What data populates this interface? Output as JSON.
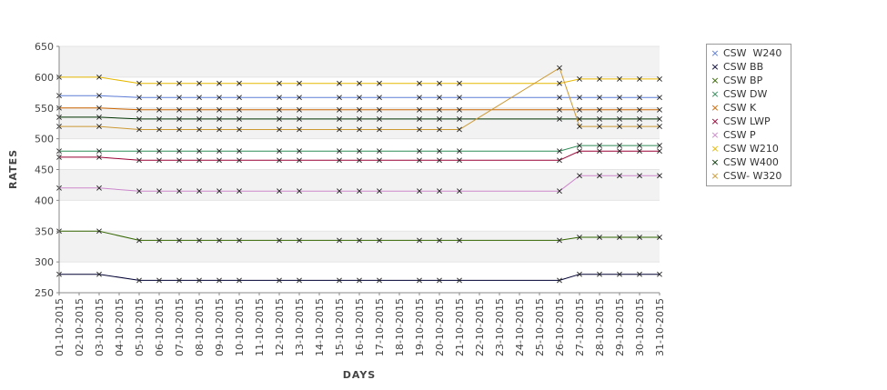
{
  "chart_data": {
    "type": "line",
    "xlabel": "DAYS",
    "ylabel": "RATES",
    "ylim": [
      250,
      650
    ],
    "yticks": [
      250,
      300,
      350,
      400,
      450,
      500,
      550,
      600,
      650
    ],
    "grid": "alternating horizontal bands",
    "legend_position": "right",
    "x": [
      "01-10-2015",
      "02-10-2015",
      "03-10-2015",
      "04-10-2015",
      "05-10-2015",
      "06-10-2015",
      "07-10-2015",
      "08-10-2015",
      "09-10-2015",
      "10-10-2015",
      "11-10-2015",
      "12-10-2015",
      "13-10-2015",
      "14-10-2015",
      "15-10-2015",
      "16-10-2015",
      "17-10-2015",
      "18-10-2015",
      "19-10-2015",
      "20-10-2015",
      "21-10-2015",
      "22-10-2015",
      "23-10-2015",
      "24-10-2015",
      "25-10-2015",
      "26-10-2015",
      "27-10-2015",
      "28-10-2015",
      "29-10-2015",
      "30-10-2015",
      "31-10-2015"
    ],
    "series": [
      {
        "name": "CSW  W240",
        "color": "#5b7bd5",
        "x": [
          "01-10-2015",
          "03-10-2015",
          "05-10-2015",
          "06-10-2015",
          "07-10-2015",
          "08-10-2015",
          "09-10-2015",
          "10-10-2015",
          "12-10-2015",
          "13-10-2015",
          "15-10-2015",
          "16-10-2015",
          "17-10-2015",
          "19-10-2015",
          "20-10-2015",
          "21-10-2015",
          "26-10-2015",
          "27-10-2015",
          "28-10-2015",
          "29-10-2015",
          "30-10-2015",
          "31-10-2015"
        ],
        "values": [
          570,
          570,
          567,
          567,
          567,
          567,
          567,
          567,
          567,
          567,
          567,
          567,
          567,
          567,
          567,
          567,
          567,
          567,
          567,
          567,
          567,
          567
        ]
      },
      {
        "name": "CSW BB",
        "color": "#000033",
        "x": [
          "01-10-2015",
          "03-10-2015",
          "05-10-2015",
          "06-10-2015",
          "07-10-2015",
          "08-10-2015",
          "09-10-2015",
          "10-10-2015",
          "12-10-2015",
          "13-10-2015",
          "15-10-2015",
          "16-10-2015",
          "17-10-2015",
          "19-10-2015",
          "20-10-2015",
          "21-10-2015",
          "26-10-2015",
          "27-10-2015",
          "28-10-2015",
          "29-10-2015",
          "30-10-2015",
          "31-10-2015"
        ],
        "values": [
          280,
          280,
          270,
          270,
          270,
          270,
          270,
          270,
          270,
          270,
          270,
          270,
          270,
          270,
          270,
          270,
          270,
          280,
          280,
          280,
          280,
          280
        ]
      },
      {
        "name": "CSW BP",
        "color": "#336600",
        "x": [
          "01-10-2015",
          "03-10-2015",
          "05-10-2015",
          "06-10-2015",
          "07-10-2015",
          "08-10-2015",
          "09-10-2015",
          "10-10-2015",
          "12-10-2015",
          "13-10-2015",
          "15-10-2015",
          "16-10-2015",
          "17-10-2015",
          "19-10-2015",
          "20-10-2015",
          "21-10-2015",
          "26-10-2015",
          "27-10-2015",
          "28-10-2015",
          "29-10-2015",
          "30-10-2015",
          "31-10-2015"
        ],
        "values": [
          350,
          350,
          335,
          335,
          335,
          335,
          335,
          335,
          335,
          335,
          335,
          335,
          335,
          335,
          335,
          335,
          335,
          340,
          340,
          340,
          340,
          340
        ]
      },
      {
        "name": "CSW DW",
        "color": "#2e8b57",
        "x": [
          "01-10-2015",
          "03-10-2015",
          "05-10-2015",
          "06-10-2015",
          "07-10-2015",
          "08-10-2015",
          "09-10-2015",
          "10-10-2015",
          "12-10-2015",
          "13-10-2015",
          "15-10-2015",
          "16-10-2015",
          "17-10-2015",
          "19-10-2015",
          "20-10-2015",
          "21-10-2015",
          "26-10-2015",
          "27-10-2015",
          "28-10-2015",
          "29-10-2015",
          "30-10-2015",
          "31-10-2015"
        ],
        "values": [
          480,
          480,
          480,
          480,
          480,
          480,
          480,
          480,
          480,
          480,
          480,
          480,
          480,
          480,
          480,
          480,
          480,
          489,
          489,
          489,
          489,
          489
        ]
      },
      {
        "name": "CSW K",
        "color": "#cc6600",
        "x": [
          "01-10-2015",
          "03-10-2015",
          "05-10-2015",
          "06-10-2015",
          "07-10-2015",
          "08-10-2015",
          "09-10-2015",
          "10-10-2015",
          "12-10-2015",
          "13-10-2015",
          "15-10-2015",
          "16-10-2015",
          "17-10-2015",
          "19-10-2015",
          "20-10-2015",
          "21-10-2015",
          "26-10-2015",
          "27-10-2015",
          "28-10-2015",
          "29-10-2015",
          "30-10-2015",
          "31-10-2015"
        ],
        "values": [
          550,
          550,
          547,
          547,
          547,
          547,
          547,
          547,
          547,
          547,
          547,
          547,
          547,
          547,
          547,
          547,
          547,
          547,
          547,
          547,
          547,
          547
        ]
      },
      {
        "name": "CSW LWP",
        "color": "#990033",
        "x": [
          "01-10-2015",
          "03-10-2015",
          "05-10-2015",
          "06-10-2015",
          "07-10-2015",
          "08-10-2015",
          "09-10-2015",
          "10-10-2015",
          "12-10-2015",
          "13-10-2015",
          "15-10-2015",
          "16-10-2015",
          "17-10-2015",
          "19-10-2015",
          "20-10-2015",
          "21-10-2015",
          "26-10-2015",
          "27-10-2015",
          "28-10-2015",
          "29-10-2015",
          "30-10-2015",
          "31-10-2015"
        ],
        "values": [
          470,
          470,
          465,
          465,
          465,
          465,
          465,
          465,
          465,
          465,
          465,
          465,
          465,
          465,
          465,
          465,
          465,
          480,
          480,
          480,
          480,
          480
        ]
      },
      {
        "name": "CSW P",
        "color": "#cc88cc",
        "x": [
          "01-10-2015",
          "03-10-2015",
          "05-10-2015",
          "06-10-2015",
          "07-10-2015",
          "08-10-2015",
          "09-10-2015",
          "10-10-2015",
          "12-10-2015",
          "13-10-2015",
          "15-10-2015",
          "16-10-2015",
          "17-10-2015",
          "19-10-2015",
          "20-10-2015",
          "21-10-2015",
          "26-10-2015",
          "27-10-2015",
          "28-10-2015",
          "29-10-2015",
          "30-10-2015",
          "31-10-2015"
        ],
        "values": [
          420,
          420,
          415,
          415,
          415,
          415,
          415,
          415,
          415,
          415,
          415,
          415,
          415,
          415,
          415,
          415,
          415,
          440,
          440,
          440,
          440,
          440
        ]
      },
      {
        "name": "CSW W210",
        "color": "#e6b800",
        "x": [
          "01-10-2015",
          "03-10-2015",
          "05-10-2015",
          "06-10-2015",
          "07-10-2015",
          "08-10-2015",
          "09-10-2015",
          "10-10-2015",
          "12-10-2015",
          "13-10-2015",
          "15-10-2015",
          "16-10-2015",
          "17-10-2015",
          "19-10-2015",
          "20-10-2015",
          "21-10-2015",
          "26-10-2015",
          "27-10-2015",
          "28-10-2015",
          "29-10-2015",
          "30-10-2015",
          "31-10-2015"
        ],
        "values": [
          600,
          600,
          590,
          590,
          590,
          590,
          590,
          590,
          590,
          590,
          590,
          590,
          590,
          590,
          590,
          590,
          590,
          597,
          597,
          597,
          597,
          597
        ]
      },
      {
        "name": "CSW W400",
        "color": "#003300",
        "x": [
          "01-10-2015",
          "03-10-2015",
          "05-10-2015",
          "06-10-2015",
          "07-10-2015",
          "08-10-2015",
          "09-10-2015",
          "10-10-2015",
          "12-10-2015",
          "13-10-2015",
          "15-10-2015",
          "16-10-2015",
          "17-10-2015",
          "19-10-2015",
          "20-10-2015",
          "21-10-2015",
          "26-10-2015",
          "27-10-2015",
          "28-10-2015",
          "29-10-2015",
          "30-10-2015",
          "31-10-2015"
        ],
        "values": [
          535,
          535,
          532,
          532,
          532,
          532,
          532,
          532,
          532,
          532,
          532,
          532,
          532,
          532,
          532,
          532,
          532,
          532,
          532,
          532,
          532,
          532
        ]
      },
      {
        "name": "CSW- W320",
        "color": "#cc9933",
        "x": [
          "01-10-2015",
          "03-10-2015",
          "05-10-2015",
          "06-10-2015",
          "07-10-2015",
          "08-10-2015",
          "09-10-2015",
          "10-10-2015",
          "12-10-2015",
          "13-10-2015",
          "15-10-2015",
          "16-10-2015",
          "17-10-2015",
          "19-10-2015",
          "20-10-2015",
          "21-10-2015",
          "26-10-2015",
          "27-10-2015",
          "28-10-2015",
          "29-10-2015",
          "30-10-2015",
          "31-10-2015"
        ],
        "values": [
          520,
          520,
          515,
          515,
          515,
          515,
          515,
          515,
          515,
          515,
          515,
          515,
          515,
          515,
          515,
          515,
          615,
          520,
          520,
          520,
          520,
          520
        ]
      }
    ]
  }
}
